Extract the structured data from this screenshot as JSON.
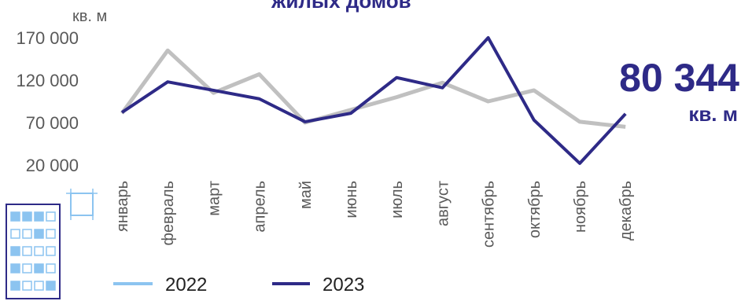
{
  "chart_data": {
    "type": "line",
    "title": "жилых домов",
    "ylabel": "кв. м",
    "ylim": [
      20000,
      170000
    ],
    "yticks": [
      "170 000",
      "120 000",
      "70 000",
      "20 000"
    ],
    "ytick_values": [
      170000,
      120000,
      70000,
      20000
    ],
    "categories": [
      "январь",
      "февраль",
      "март",
      "апрель",
      "май",
      "июнь",
      "июль",
      "август",
      "сентябрь",
      "октябрь",
      "ноябрь",
      "декабрь"
    ],
    "series": [
      {
        "name": "2022",
        "color": "#c0c0c0",
        "legend_color": "#8cc4f0",
        "values": [
          81000,
          155000,
          105000,
          127000,
          70000,
          85000,
          100000,
          117000,
          95000,
          108000,
          71000,
          65000
        ]
      },
      {
        "name": "2023",
        "color": "#2e2a87",
        "legend_color": "#2e2a87",
        "values": [
          82000,
          118000,
          108000,
          98000,
          71000,
          81000,
          123000,
          111000,
          170000,
          73000,
          22000,
          80344
        ]
      }
    ],
    "highlight": {
      "value": "80 344",
      "unit": "кв. м"
    },
    "legend_position": "bottom",
    "grid": false
  },
  "decorations": {
    "building_icon": "building-icon",
    "blueprint_icon": "blueprint-icon"
  }
}
